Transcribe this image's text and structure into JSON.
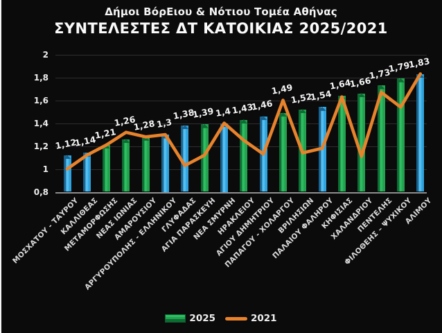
{
  "header": {
    "subtitle": "Δήμοι ΒόρΕιου & Νότιου Τομέα Αθήνας",
    "title": "ΣΥΝΤΕΛΕΣΤΕΣ ΔΤ ΚΑΤΟΙΚΙΑΣ 2025/2021"
  },
  "legend": {
    "items": [
      {
        "label": "2025",
        "swatch": "green-bar"
      },
      {
        "label": "2021",
        "swatch": "orange-line"
      }
    ],
    "position": "bottom-center"
  },
  "colors": {
    "background": "#0b0b0b",
    "title_text": "#fbfbfb",
    "tick_text": "#ececec",
    "x_label_text": "#d9d9d9",
    "data_label_text": "#f4f4f4",
    "gridline": "#2e2e2e",
    "axis_line": "#8f8f8f",
    "bar_green_face": "#22a14e",
    "bar_green_dark": "#0e6b33",
    "bar_green_light": "#2fbe62",
    "bar_blue_face": "#2fa3de",
    "bar_blue_dark": "#19618c",
    "bar_blue_light": "#55c1f2",
    "line_orange": "#e8832c"
  },
  "chart_data": {
    "type": "bar",
    "combo": "bars (2025) + line overlay (2021)",
    "title": "ΣΥΝΤΕΛΕΣΤΕΣ ΔΤ ΚΑΤΟΙΚΙΑΣ 2025/2021",
    "subtitle": "Δήμοι ΒόρΕιου & Νότιου Τομέα Αθήνας",
    "categories": [
      "ΜΟΣΧΑΤΟΥ - ΤΑΥΡΟΥ",
      "ΚΑΛΛΙΘΕΑΣ",
      "ΜΕΤΑΜΟΡΦΩΣΗΣ",
      "ΝΕΑΣ ΙΩΝΙΑΣ",
      "ΑΜΑΡΟΥΣΙΟΥ",
      "ΑΡΓΥΡΟΥΠΟΛΗΣ - ΕΛΛΗΝΙΚΟΥ",
      "ΓΛΥΦΑΔΑΣ",
      "ΑΓΙΑ ΠΑΡΑΣΚΕΥΗ",
      "ΝΕΑ ΣΜΥΡΝΗ",
      "ΗΡΑΚΛΕΙΟΥ",
      "ΑΓΙΟΥ ΔΗΜΗΤΡΙΟΥ",
      "ΠΑΠΑΓΟΥ - ΧΟΛΑΡΓΟΥ",
      "ΒΡΙΛΗΣΙΩΝ",
      "ΠΑΛΑΙΟΥ ΦΑΛΗΡΟΥ",
      "ΚΗΦΙΣΙΑΣ",
      "ΧΑΛΑΝΔΡΙΟΥ",
      "ΠΕΝΤΕΛΗΣ",
      "ΦΙΛΟΘΕΗΣ – ΨΥΧΙΚΟΥ",
      "ΑΛΙΜΟΥ"
    ],
    "series": [
      {
        "name": "2025",
        "type": "bar",
        "values": [
          1.12,
          1.14,
          1.21,
          1.26,
          1.28,
          1.3,
          1.38,
          1.39,
          1.4,
          1.43,
          1.46,
          1.49,
          1.52,
          1.54,
          1.64,
          1.66,
          1.73,
          1.79,
          1.83
        ],
        "value_labels": [
          "1,12",
          "1,14",
          "1,21",
          "1,26",
          "1,28",
          "1,3",
          "1,38",
          "1,39",
          "1,4",
          "1,43",
          "1,46",
          "1,49",
          "1,52",
          "1,54",
          "1,64",
          "1,66",
          "1,73",
          "1,79",
          "1,83"
        ],
        "bar_colors": [
          "blue",
          "blue",
          "green",
          "green",
          "green",
          "blue",
          "blue",
          "green",
          "blue",
          "green",
          "blue",
          "green",
          "green",
          "blue",
          "green",
          "green",
          "green",
          "green",
          "blue"
        ]
      },
      {
        "name": "2021",
        "type": "line",
        "values": [
          1.0,
          1.12,
          1.21,
          1.32,
          1.28,
          1.3,
          1.03,
          1.12,
          1.4,
          1.25,
          1.13,
          1.6,
          1.14,
          1.18,
          1.63,
          1.11,
          1.67,
          1.54,
          1.83
        ]
      }
    ],
    "ylim": [
      0.8,
      2.0
    ],
    "yticks": {
      "labels": [
        "2",
        "1,8",
        "1,6",
        "1,4",
        "1,2",
        "1",
        "0,8"
      ],
      "values": [
        2.0,
        1.8,
        1.6,
        1.4,
        1.2,
        1.0,
        0.8
      ]
    },
    "grid": true,
    "x_labels_rotation_deg": 45,
    "data_labels_on": "2025",
    "legend_position": "bottom"
  }
}
